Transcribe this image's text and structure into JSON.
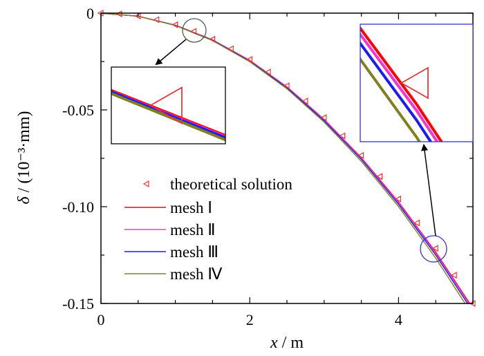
{
  "chart_data": {
    "type": "line",
    "xlabel_var": "x",
    "xlabel_unit": "/ m",
    "ylabel_var": "δ",
    "ylabel_unit": "/ (10⁻³·mm)",
    "xlim": [
      0,
      5
    ],
    "ylim": [
      -0.15,
      0
    ],
    "x_ticks": [
      0,
      2,
      4
    ],
    "x_tick_labels": [
      "0",
      "2",
      "4"
    ],
    "y_ticks": [
      0,
      -0.05,
      -0.1,
      -0.15
    ],
    "y_tick_labels": [
      "0",
      "-0.05",
      "-0.10",
      "-0.15"
    ],
    "grid": false,
    "legend_position": "lower-left",
    "series": [
      {
        "name": "theoretical solution",
        "kind": "markers",
        "marker": "left-triangle",
        "color": "#e8343a",
        "x": [
          0,
          0.25,
          0.5,
          0.75,
          1.0,
          1.25,
          1.5,
          1.75,
          2.0,
          2.25,
          2.5,
          2.75,
          3.0,
          3.25,
          3.5,
          3.75,
          4.0,
          4.25,
          4.5,
          4.75,
          5.0
        ],
        "y": [
          0,
          -0.0004,
          -0.0015,
          -0.0034,
          -0.006,
          -0.0094,
          -0.0135,
          -0.0184,
          -0.024,
          -0.0304,
          -0.0375,
          -0.0454,
          -0.054,
          -0.0634,
          -0.0735,
          -0.0844,
          -0.096,
          -0.1084,
          -0.1215,
          -0.1354,
          -0.15
        ]
      },
      {
        "name": "mesh Ⅰ",
        "kind": "line",
        "color": "#ff0000",
        "x": [
          0,
          0.5,
          1.0,
          1.5,
          2.0,
          2.5,
          3.0,
          3.5,
          4.0,
          4.5,
          5.0
        ],
        "y": [
          0,
          -0.0016,
          -0.0062,
          -0.0138,
          -0.0244,
          -0.0381,
          -0.0549,
          -0.0747,
          -0.0976,
          -0.1235,
          -0.1525
        ]
      },
      {
        "name": "mesh Ⅱ",
        "kind": "line",
        "color": "#ff33cc",
        "x": [
          0,
          0.5,
          1.0,
          1.5,
          2.0,
          2.5,
          3.0,
          3.5,
          4.0,
          4.5,
          5.0
        ],
        "y": [
          0,
          -0.0016,
          -0.0063,
          -0.0139,
          -0.0246,
          -0.0383,
          -0.0552,
          -0.0751,
          -0.0981,
          -0.1241,
          -0.1532
        ]
      },
      {
        "name": "mesh Ⅲ",
        "kind": "line",
        "color": "#1a1aff",
        "x": [
          0,
          0.5,
          1.0,
          1.5,
          2.0,
          2.5,
          3.0,
          3.5,
          4.0,
          4.5,
          5.0
        ],
        "y": [
          0,
          -0.0016,
          -0.0063,
          -0.014,
          -0.0248,
          -0.0386,
          -0.0556,
          -0.0756,
          -0.0988,
          -0.125,
          -0.1543
        ]
      },
      {
        "name": "mesh Ⅳ",
        "kind": "line",
        "color": "#808020",
        "x": [
          0,
          0.5,
          1.0,
          1.5,
          2.0,
          2.5,
          3.0,
          3.5,
          4.0,
          4.5,
          5.0
        ],
        "y": [
          0,
          -0.0016,
          -0.0064,
          -0.0142,
          -0.0251,
          -0.0391,
          -0.0563,
          -0.0766,
          -0.1,
          -0.1266,
          -0.1563
        ]
      }
    ]
  },
  "colors": {
    "axis": "#000000",
    "arrow": "#000000",
    "zoom_circle_1": "#555555",
    "zoom_circle_2": "#3333cc",
    "inset_border_1": "#000000",
    "inset_border_2": "#3333cc"
  }
}
